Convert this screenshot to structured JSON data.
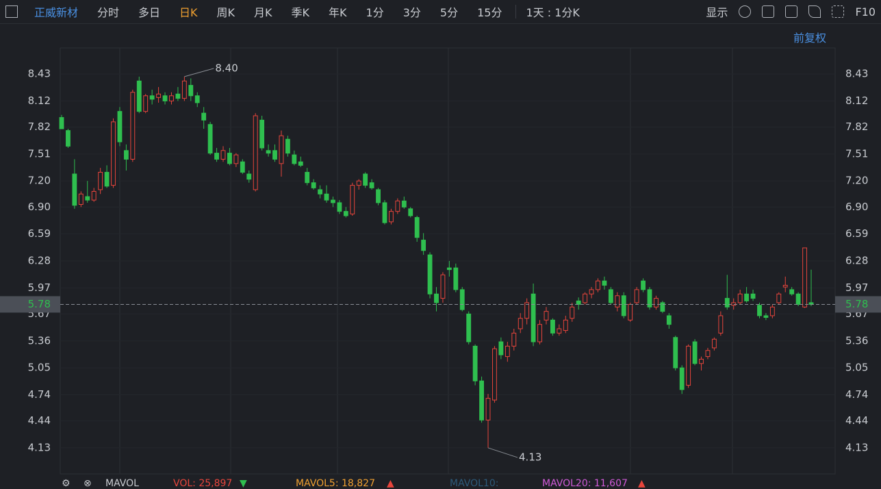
{
  "toolbar": {
    "stock": "正威新材",
    "tabs": [
      "分时",
      "多日",
      "日K",
      "周K",
      "月K",
      "季K",
      "年K",
      "1分",
      "3分",
      "5分",
      "15分"
    ],
    "interval": "1天 : 1分K",
    "display": "显示",
    "f10": "F10",
    "adjust": "前复权"
  },
  "volume_legend": {
    "indicator": "MAVOL",
    "items": [
      "VOL: 25,897",
      "MAVOL5: 18,827",
      "MAVOL10:",
      "MAVOL20: 11,607"
    ]
  },
  "chart_data": {
    "type": "candlestick",
    "up_color": "#e8453c",
    "down_color": "#2fbf4f",
    "ylim": [
      3.83,
      8.73
    ],
    "yticks": [
      8.43,
      8.12,
      7.82,
      7.51,
      {
        "value": 7.2,
        "label": "7.20"
      },
      {
        "value": 6.9,
        "label": "6.90"
      },
      6.59,
      6.28,
      5.97,
      5.67,
      5.36,
      5.05,
      4.74,
      4.44,
      4.13
    ],
    "last_price": {
      "value": 5.78,
      "label": "5.78"
    },
    "annotations": [
      {
        "index": 19,
        "value": 8.4,
        "label": "8.40"
      },
      {
        "index": 66,
        "value": 4.13,
        "label": "4.13"
      }
    ],
    "ohlc": [
      [
        7.93,
        7.96,
        7.8,
        7.8
      ],
      [
        7.78,
        7.8,
        7.58,
        7.6
      ],
      [
        7.28,
        7.45,
        6.88,
        6.92
      ],
      [
        6.93,
        7.08,
        6.9,
        7.05
      ],
      [
        7.02,
        7.2,
        6.95,
        6.98
      ],
      [
        6.98,
        7.12,
        6.96,
        7.08
      ],
      [
        7.1,
        7.35,
        7.05,
        7.3
      ],
      [
        7.3,
        7.38,
        7.12,
        7.14
      ],
      [
        7.15,
        7.92,
        7.12,
        7.88
      ],
      [
        8.0,
        8.05,
        7.6,
        7.65
      ],
      [
        7.55,
        7.62,
        7.32,
        7.45
      ],
      [
        7.45,
        8.25,
        7.42,
        8.22
      ],
      [
        8.35,
        8.4,
        7.98,
        8.0
      ],
      [
        8.0,
        8.2,
        7.98,
        8.18
      ],
      [
        8.18,
        8.25,
        8.08,
        8.14
      ],
      [
        8.16,
        8.28,
        8.1,
        8.2
      ],
      [
        8.18,
        8.22,
        8.08,
        8.12
      ],
      [
        8.12,
        8.22,
        8.08,
        8.18
      ],
      [
        8.2,
        8.28,
        8.12,
        8.15
      ],
      [
        8.15,
        8.4,
        8.12,
        8.35
      ],
      [
        8.3,
        8.38,
        8.12,
        8.18
      ],
      [
        8.18,
        8.22,
        8.05,
        8.1
      ],
      [
        7.98,
        8.05,
        7.8,
        7.9
      ],
      [
        7.85,
        7.88,
        7.5,
        7.52
      ],
      [
        7.52,
        7.58,
        7.42,
        7.45
      ],
      [
        7.45,
        7.6,
        7.42,
        7.55
      ],
      [
        7.52,
        7.58,
        7.38,
        7.4
      ],
      [
        7.4,
        7.52,
        7.36,
        7.5
      ],
      [
        7.42,
        7.45,
        7.28,
        7.3
      ],
      [
        7.28,
        7.32,
        7.18,
        7.22
      ],
      [
        7.1,
        7.98,
        7.08,
        7.95
      ],
      [
        7.9,
        7.95,
        7.55,
        7.58
      ],
      [
        7.55,
        7.62,
        7.48,
        7.52
      ],
      [
        7.55,
        7.62,
        7.42,
        7.45
      ],
      [
        7.4,
        7.78,
        7.25,
        7.72
      ],
      [
        7.68,
        7.72,
        7.48,
        7.52
      ],
      [
        7.5,
        7.55,
        7.38,
        7.4
      ],
      [
        7.42,
        7.48,
        7.36,
        7.38
      ],
      [
        7.3,
        7.35,
        7.15,
        7.18
      ],
      [
        7.18,
        7.22,
        7.1,
        7.12
      ],
      [
        7.1,
        7.15,
        7.0,
        7.05
      ],
      [
        7.05,
        7.15,
        6.95,
        6.98
      ],
      [
        6.98,
        7.02,
        6.9,
        6.95
      ],
      [
        6.95,
        6.98,
        6.82,
        6.85
      ],
      [
        6.85,
        6.9,
        6.78,
        6.8
      ],
      [
        6.82,
        7.18,
        6.8,
        7.15
      ],
      [
        7.15,
        7.22,
        7.1,
        7.2
      ],
      [
        7.28,
        7.3,
        7.12,
        7.15
      ],
      [
        7.18,
        7.22,
        7.1,
        7.12
      ],
      [
        7.1,
        7.12,
        6.92,
        6.95
      ],
      [
        6.95,
        6.98,
        6.7,
        6.72
      ],
      [
        6.73,
        6.88,
        6.7,
        6.85
      ],
      [
        6.85,
        7.0,
        6.82,
        6.97
      ],
      [
        6.97,
        7.02,
        6.88,
        6.9
      ],
      [
        6.88,
        6.9,
        6.78,
        6.8
      ],
      [
        6.78,
        6.8,
        6.5,
        6.55
      ],
      [
        6.52,
        6.6,
        6.35,
        6.4
      ],
      [
        6.35,
        6.38,
        5.85,
        5.9
      ],
      [
        5.9,
        5.98,
        5.7,
        5.8
      ],
      [
        5.85,
        6.15,
        5.8,
        6.12
      ],
      [
        6.2,
        6.28,
        6.1,
        6.18
      ],
      [
        6.2,
        6.25,
        5.92,
        5.95
      ],
      [
        5.95,
        5.98,
        5.7,
        5.72
      ],
      [
        5.67,
        5.7,
        5.32,
        5.35
      ],
      [
        5.3,
        5.32,
        4.85,
        4.9
      ],
      [
        4.9,
        4.95,
        4.42,
        4.45
      ],
      [
        4.45,
        4.75,
        4.13,
        4.7
      ],
      [
        4.68,
        5.3,
        4.65,
        5.27
      ],
      [
        5.35,
        5.4,
        5.15,
        5.2
      ],
      [
        5.18,
        5.35,
        5.12,
        5.3
      ],
      [
        5.3,
        5.5,
        5.25,
        5.45
      ],
      [
        5.5,
        5.68,
        5.45,
        5.62
      ],
      [
        5.62,
        5.85,
        5.55,
        5.8
      ],
      [
        5.9,
        6.02,
        5.3,
        5.35
      ],
      [
        5.35,
        5.6,
        5.32,
        5.55
      ],
      [
        5.6,
        5.75,
        5.55,
        5.7
      ],
      [
        5.6,
        5.62,
        5.42,
        5.45
      ],
      [
        5.45,
        5.55,
        5.42,
        5.5
      ],
      [
        5.48,
        5.65,
        5.45,
        5.6
      ],
      [
        5.62,
        5.8,
        5.58,
        5.75
      ],
      [
        5.82,
        5.86,
        5.72,
        5.78
      ],
      [
        5.8,
        5.92,
        5.78,
        5.9
      ],
      [
        5.9,
        5.98,
        5.85,
        5.95
      ],
      [
        5.95,
        6.08,
        5.92,
        6.05
      ],
      [
        6.05,
        6.1,
        5.95,
        6.0
      ],
      [
        5.95,
        5.98,
        5.78,
        5.8
      ],
      [
        5.75,
        5.92,
        5.7,
        5.88
      ],
      [
        5.88,
        5.92,
        5.62,
        5.65
      ],
      [
        5.6,
        5.8,
        5.58,
        5.78
      ],
      [
        5.8,
        5.98,
        5.78,
        5.95
      ],
      [
        6.05,
        6.08,
        5.92,
        5.95
      ],
      [
        5.95,
        5.98,
        5.72,
        5.75
      ],
      [
        5.75,
        5.88,
        5.72,
        5.85
      ],
      [
        5.8,
        5.82,
        5.68,
        5.7
      ],
      [
        5.65,
        5.68,
        5.5,
        5.55
      ],
      [
        5.4,
        5.42,
        5.02,
        5.05
      ],
      [
        5.05,
        5.08,
        4.75,
        4.8
      ],
      [
        4.85,
        5.32,
        4.82,
        5.3
      ],
      [
        5.35,
        5.38,
        5.08,
        5.1
      ],
      [
        5.1,
        5.18,
        5.02,
        5.15
      ],
      [
        5.18,
        5.28,
        5.15,
        5.25
      ],
      [
        5.28,
        5.4,
        5.25,
        5.38
      ],
      [
        5.45,
        5.7,
        5.42,
        5.65
      ],
      [
        5.85,
        6.12,
        5.72,
        5.75
      ],
      [
        5.77,
        5.85,
        5.72,
        5.8
      ],
      [
        5.8,
        5.95,
        5.78,
        5.9
      ],
      [
        5.9,
        5.98,
        5.8,
        5.82
      ],
      [
        5.9,
        5.95,
        5.82,
        5.85
      ],
      [
        5.77,
        5.8,
        5.62,
        5.65
      ],
      [
        5.65,
        5.68,
        5.6,
        5.63
      ],
      [
        5.65,
        5.78,
        5.62,
        5.75
      ],
      [
        5.8,
        5.92,
        5.78,
        5.9
      ],
      [
        5.98,
        6.1,
        5.92,
        6.0
      ],
      [
        5.95,
        5.98,
        5.88,
        5.9
      ],
      [
        5.9,
        5.92,
        5.76,
        5.78
      ],
      [
        5.75,
        6.43,
        5.74,
        6.43
      ],
      [
        5.8,
        6.18,
        5.76,
        5.78
      ]
    ]
  }
}
